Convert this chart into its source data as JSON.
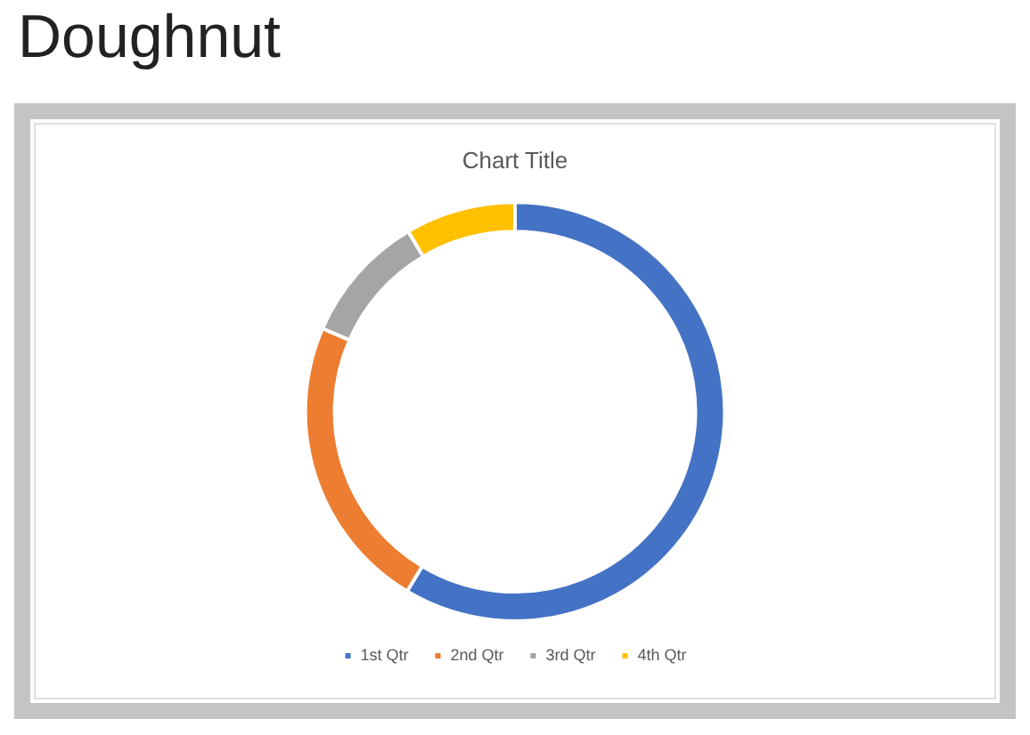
{
  "chart_data": {
    "type": "donut",
    "title": "Doughnut",
    "subtitle": "Chart Title",
    "categories": [
      "1st Qtr",
      "2nd Qtr",
      "3rd Qtr",
      "4th Qtr"
    ],
    "values": [
      58.6,
      22.9,
      10,
      8.5
    ],
    "colors": [
      "#4472c4",
      "#ed7d31",
      "#a5a5a5",
      "#ffc000"
    ],
    "legend": "bottom"
  }
}
